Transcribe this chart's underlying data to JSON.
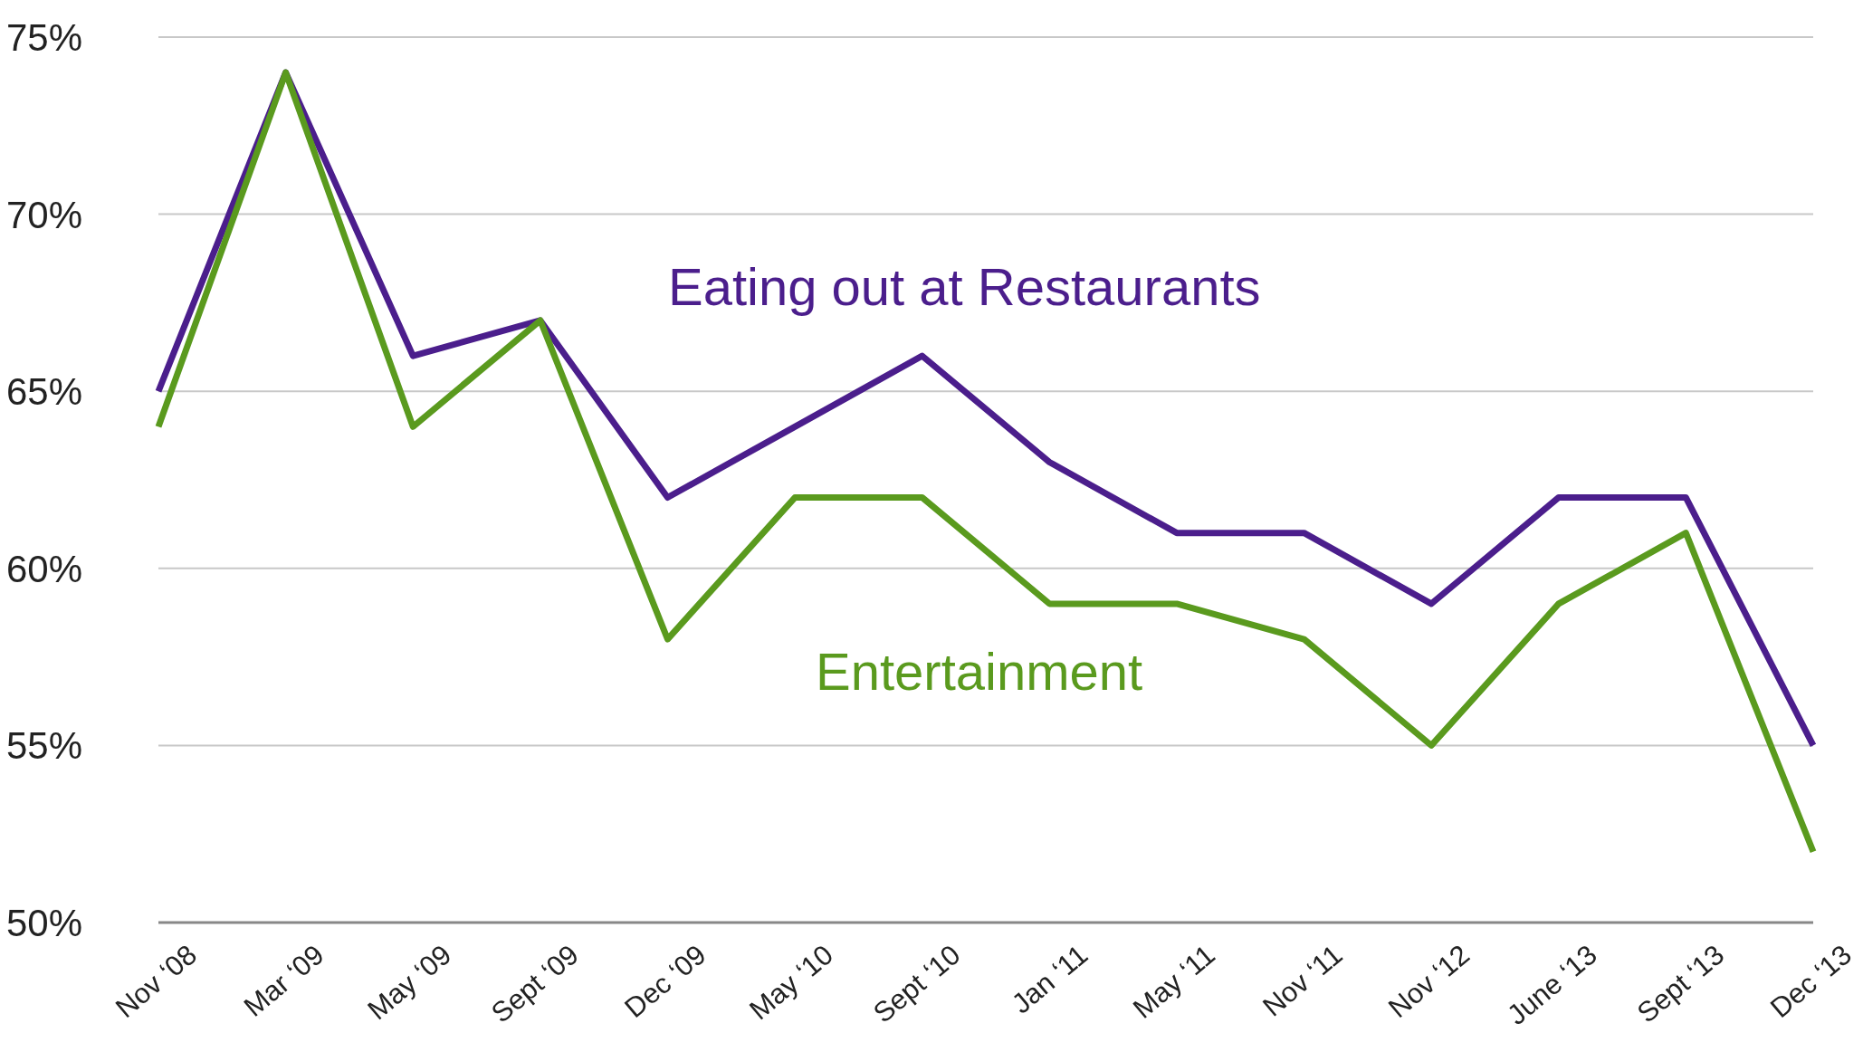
{
  "chart_data": {
    "type": "line",
    "categories": [
      "Nov ‘08",
      "Mar ‘09",
      "May ‘09",
      "Sept ‘09",
      "Dec ‘09",
      "May ‘10",
      "Sept ‘10",
      "Jan ‘11",
      "May ‘11",
      "Nov ‘11",
      "Nov ‘12",
      "June ‘13",
      "Sept ‘13",
      "Dec ‘13"
    ],
    "series": [
      {
        "name": "Eating out at Restaurants",
        "color": "#4b1e8c",
        "values": [
          65,
          74,
          66,
          67,
          62,
          64,
          66,
          63,
          61,
          61,
          59,
          62,
          62,
          55
        ]
      },
      {
        "name": "Entertainment",
        "color": "#5a9a1e",
        "values": [
          64,
          74,
          64,
          67,
          58,
          62,
          62,
          59,
          59,
          58,
          55,
          59,
          61,
          52
        ]
      }
    ],
    "ylim": [
      50,
      75
    ],
    "yticks": [
      {
        "value": 50,
        "label": "50%"
      },
      {
        "value": 55,
        "label": "55%"
      },
      {
        "value": 60,
        "label": "60%"
      },
      {
        "value": 65,
        "label": "65%"
      },
      {
        "value": 70,
        "label": "70%"
      },
      {
        "value": 75,
        "label": "75%"
      }
    ],
    "grid": "y",
    "legend": false,
    "marker": "none",
    "line_style": "solid"
  }
}
